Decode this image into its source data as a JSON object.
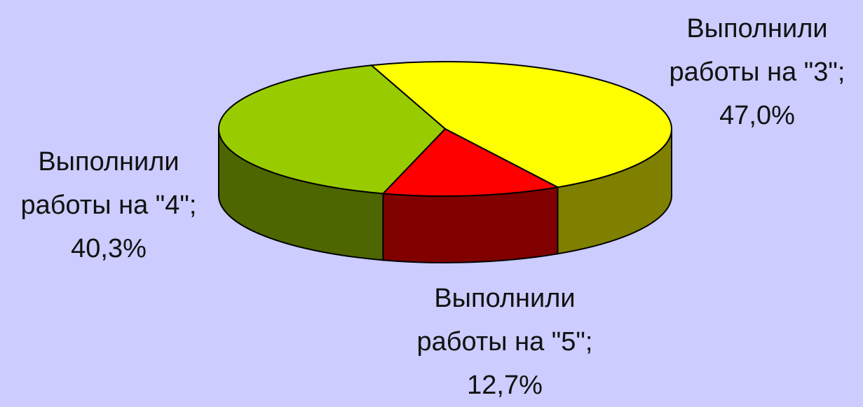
{
  "chart_data": {
    "type": "pie",
    "categories": [
      "Выполнили работы на \"3\";",
      "Выполнили работы на \"5\";",
      "Выполнили работы на \"4\";"
    ],
    "values": [
      47.0,
      12.7,
      40.3
    ],
    "value_labels": [
      "47,0%",
      "12,7%",
      "40,3%"
    ],
    "colors": [
      "#ffff00",
      "#ff0000",
      "#99cc00"
    ]
  }
}
